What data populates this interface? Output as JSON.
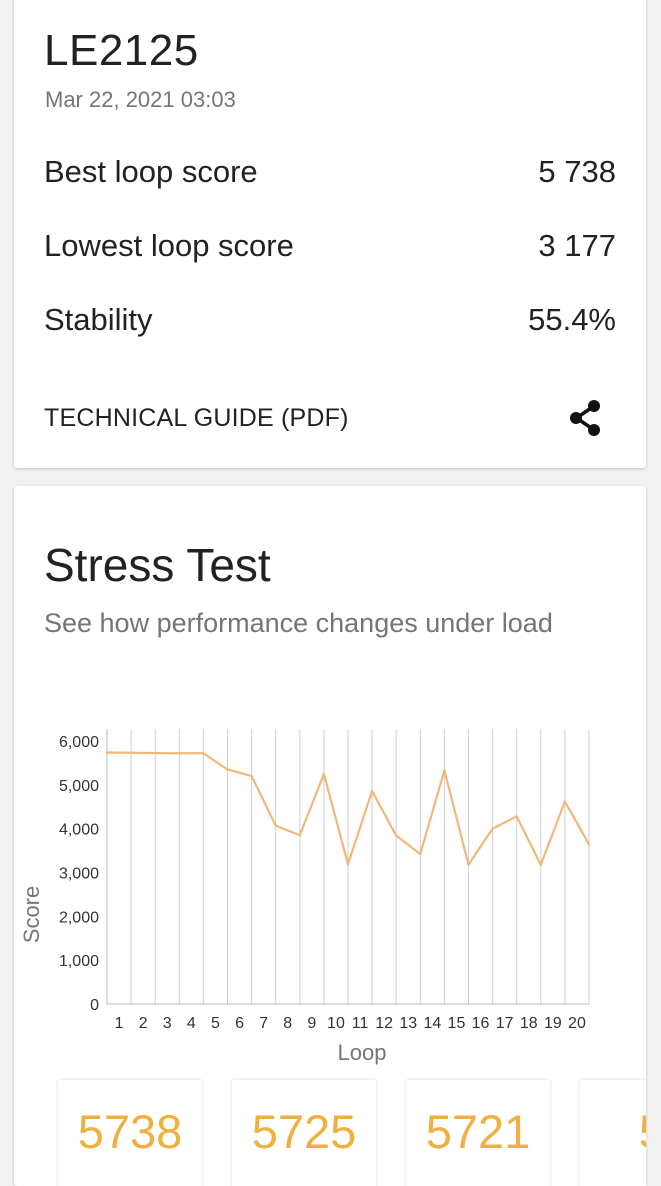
{
  "summary": {
    "device": "LE2125",
    "date": "Mar 22, 2021 03:03",
    "rows": [
      {
        "label": "Best loop score",
        "value": "5 738"
      },
      {
        "label": "Lowest loop score",
        "value": "3 177"
      },
      {
        "label": "Stability",
        "value": "55.4%"
      }
    ],
    "guide_label": "TECHNICAL GUIDE (PDF)",
    "share_icon": "share-icon"
  },
  "stress": {
    "title": "Stress Test",
    "subtitle": "See how performance changes under load",
    "tiles": [
      "5738",
      "5725",
      "5721",
      "5"
    ],
    "tile_color": "#F0B040"
  },
  "chart_data": {
    "type": "line",
    "xlabel": "Loop",
    "ylabel": "Score",
    "ylim": [
      0,
      6000
    ],
    "yticks": [
      "0",
      "1,000",
      "2,000",
      "3,000",
      "4,000",
      "5,000",
      "6,000"
    ],
    "x": [
      1,
      2,
      3,
      4,
      5,
      6,
      7,
      8,
      9,
      10,
      11,
      12,
      13,
      14,
      15,
      16,
      17,
      18,
      19,
      20
    ],
    "series": [
      {
        "values": [
          5738,
          5725,
          5721,
          5720,
          5350,
          5200,
          4070,
          3850,
          5250,
          3190,
          4860,
          3840,
          3420,
          5330,
          3180,
          4000,
          4280,
          3177,
          4620,
          3640
        ],
        "color": "#F0B878"
      }
    ],
    "grid": "vertical"
  }
}
